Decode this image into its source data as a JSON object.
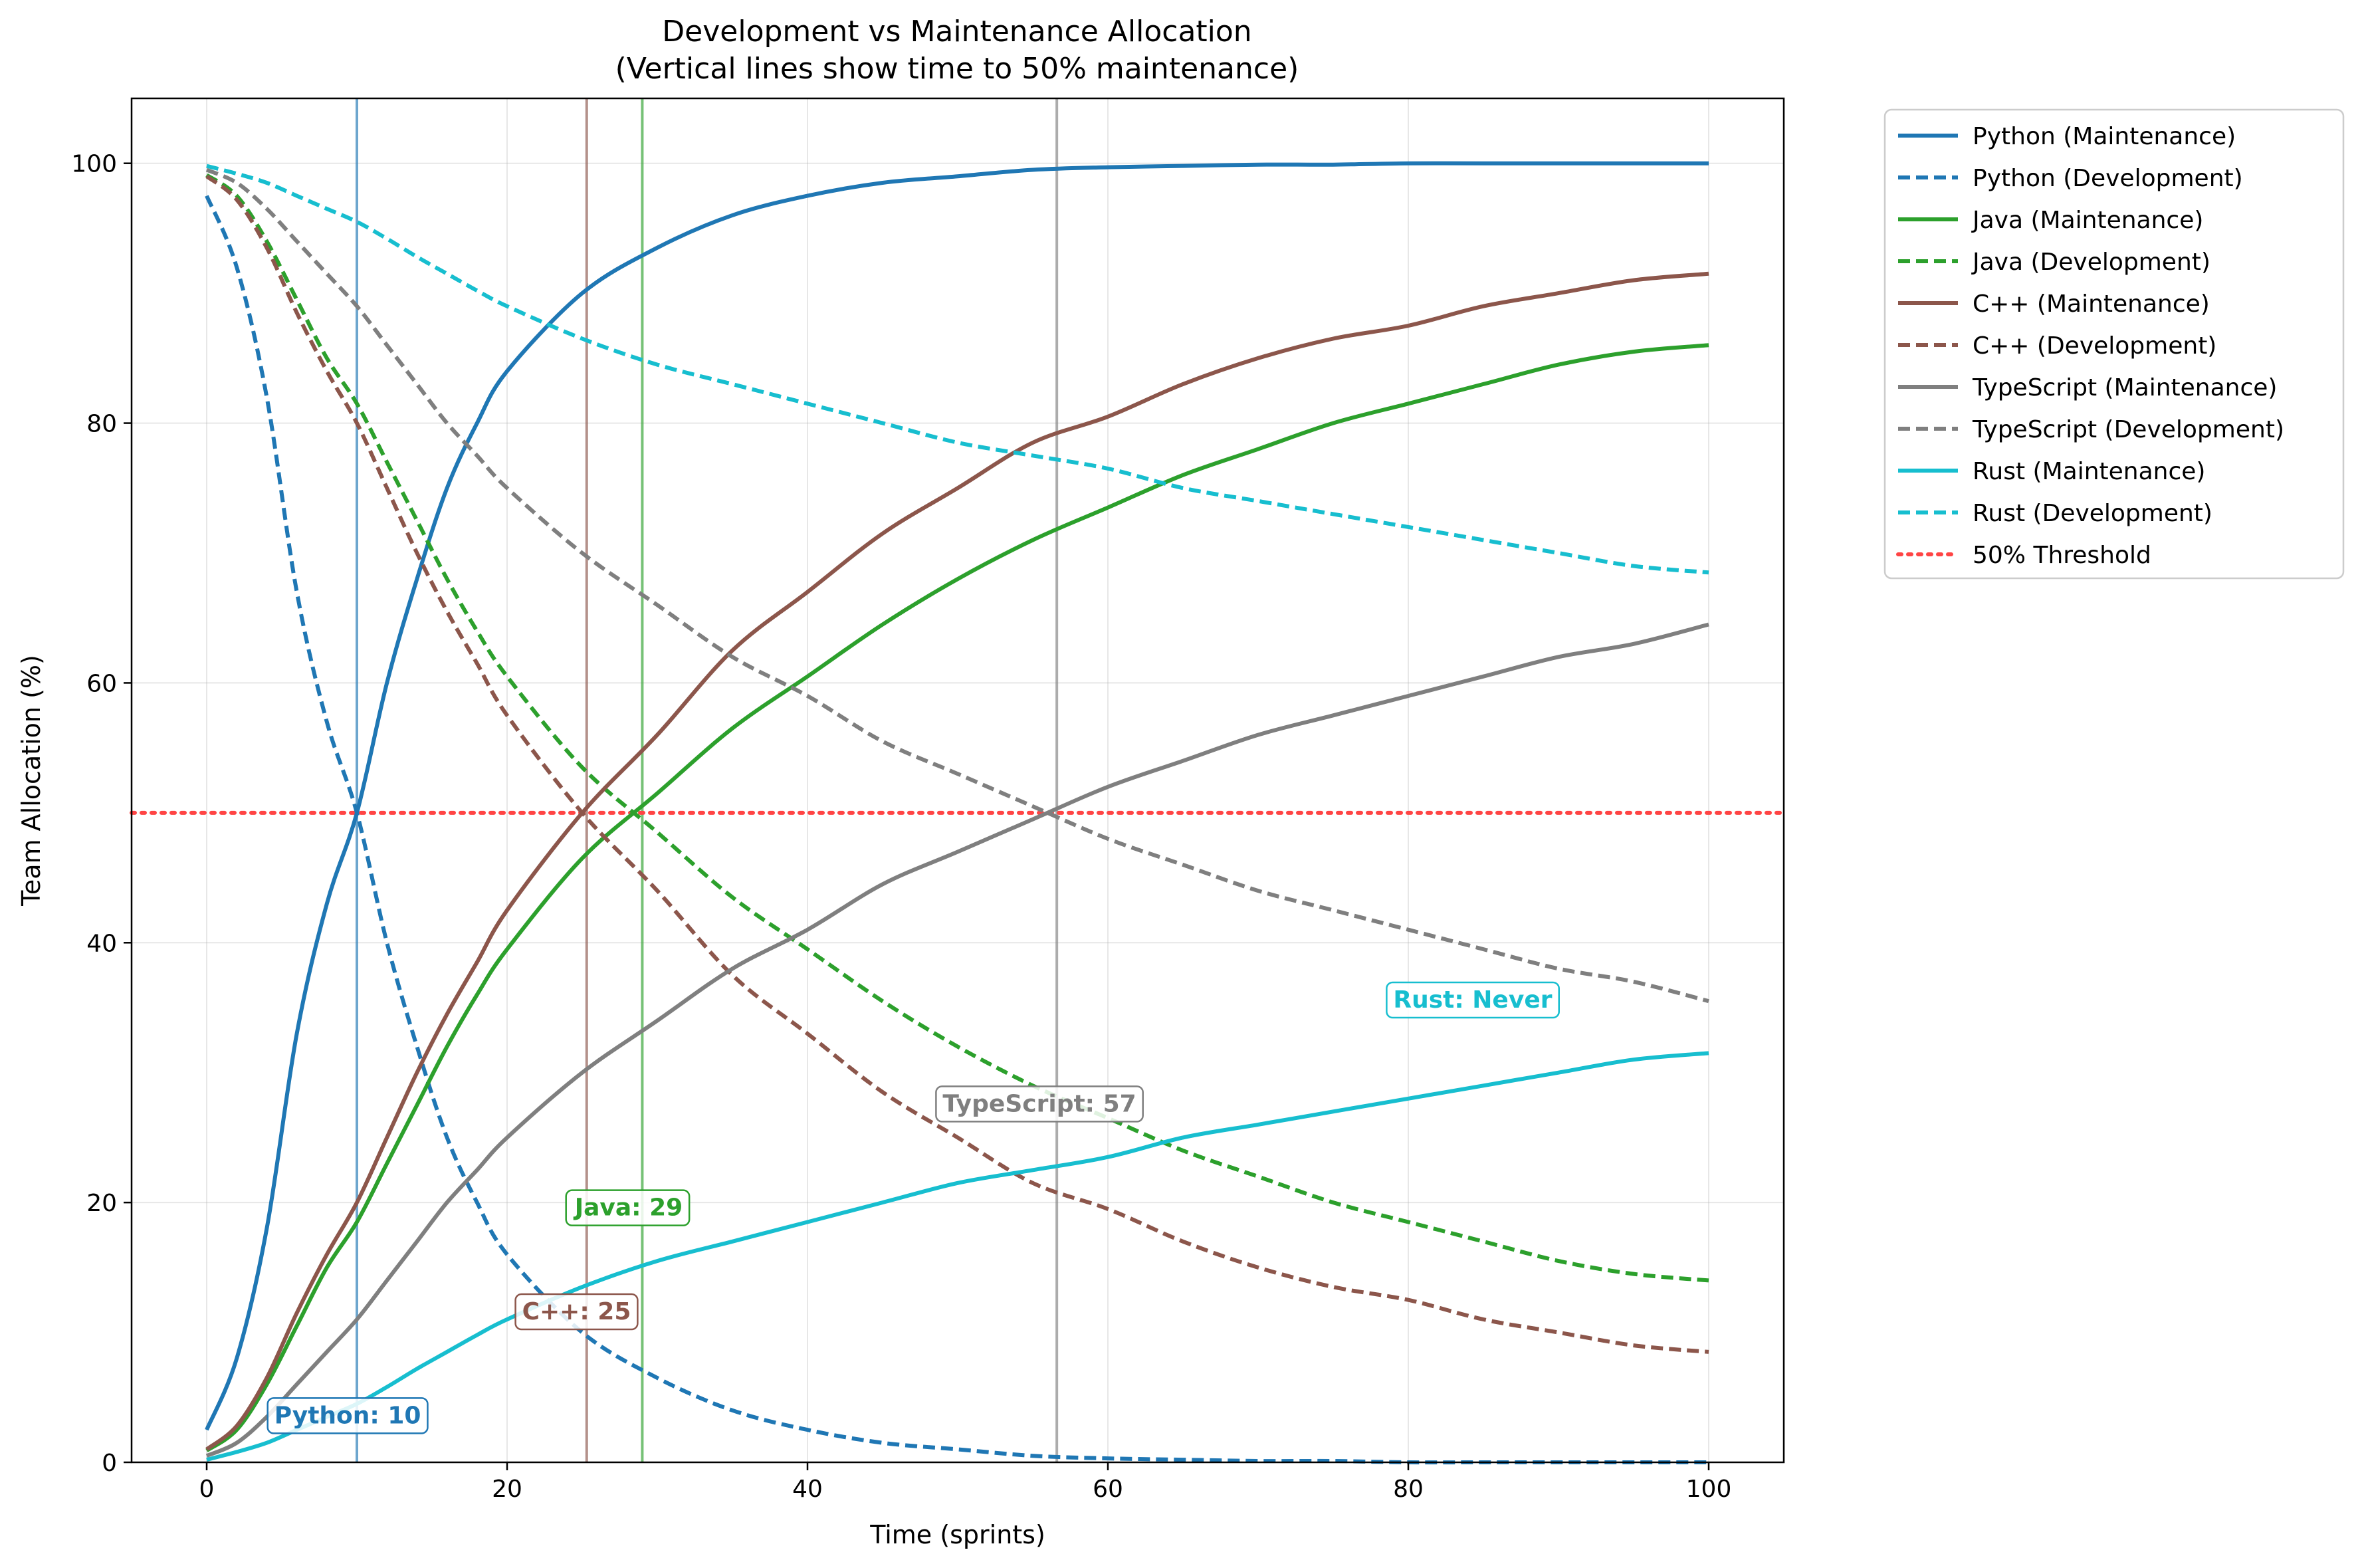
{
  "chart_data": {
    "type": "line",
    "title": "Development vs Maintenance Allocation",
    "subtitle": "(Vertical lines show time to 50% maintenance)",
    "xlabel": "Time (sprints)",
    "ylabel": "Team Allocation (%)",
    "xlim": [
      -5,
      105
    ],
    "ylim": [
      0,
      105
    ],
    "xticks": [
      0,
      20,
      40,
      60,
      80,
      100
    ],
    "yticks": [
      0,
      20,
      40,
      60,
      80,
      100
    ],
    "grid": true,
    "legend_position": "outside-right",
    "x": [
      0,
      2,
      4,
      6,
      8,
      10,
      12,
      14,
      16,
      18,
      20,
      25,
      30,
      35,
      40,
      45,
      50,
      55,
      60,
      65,
      70,
      75,
      80,
      85,
      90,
      95,
      100
    ],
    "series": [
      {
        "name": "Python (Maintenance)",
        "color": "#1f77b4",
        "style": "solid",
        "values": [
          2.5,
          8.0,
          18.0,
          33.0,
          43.0,
          50.0,
          60.0,
          68.0,
          75.0,
          80.0,
          84.0,
          90.0,
          93.5,
          96.0,
          97.5,
          98.5,
          99.0,
          99.5,
          99.7,
          99.8,
          99.9,
          99.9,
          100.0,
          100.0,
          100.0,
          100.0,
          100.0
        ]
      },
      {
        "name": "Python (Development)",
        "color": "#1f77b4",
        "style": "dashed",
        "values": [
          97.5,
          92.0,
          82.0,
          67.0,
          57.0,
          50.0,
          40.0,
          32.0,
          25.0,
          20.0,
          16.0,
          10.0,
          6.5,
          4.0,
          2.5,
          1.5,
          1.0,
          0.5,
          0.3,
          0.2,
          0.1,
          0.1,
          0.0,
          0.0,
          0.0,
          0.0,
          0.0
        ]
      },
      {
        "name": "Java (Maintenance)",
        "color": "#2ca02c",
        "style": "solid",
        "values": [
          0.9,
          2.5,
          6.0,
          10.5,
          15.0,
          18.5,
          23.0,
          27.5,
          32.0,
          36.0,
          39.5,
          46.5,
          51.5,
          56.5,
          60.5,
          64.5,
          68.0,
          71.0,
          73.5,
          76.0,
          78.0,
          80.0,
          81.5,
          83.0,
          84.5,
          85.5,
          86.0
        ]
      },
      {
        "name": "Java (Development)",
        "color": "#2ca02c",
        "style": "dashed",
        "values": [
          99.1,
          97.5,
          94.0,
          89.5,
          85.0,
          81.5,
          77.0,
          72.5,
          68.0,
          64.0,
          60.5,
          53.5,
          48.5,
          43.5,
          39.5,
          35.5,
          32.0,
          29.0,
          26.5,
          24.0,
          22.0,
          20.0,
          18.5,
          17.0,
          15.5,
          14.5,
          14.0
        ]
      },
      {
        "name": "C++ (Maintenance)",
        "color": "#8c564b",
        "style": "solid",
        "values": [
          1.0,
          2.8,
          6.5,
          11.5,
          16.0,
          20.0,
          25.0,
          30.0,
          34.5,
          38.5,
          42.5,
          50.0,
          56.0,
          62.5,
          67.0,
          71.5,
          75.0,
          78.5,
          80.5,
          83.0,
          85.0,
          86.5,
          87.5,
          89.0,
          90.0,
          91.0,
          91.5
        ]
      },
      {
        "name": "C++ (Development)",
        "color": "#8c564b",
        "style": "dashed",
        "values": [
          99.0,
          97.2,
          93.5,
          88.5,
          84.0,
          80.0,
          75.0,
          70.0,
          65.5,
          61.5,
          57.5,
          50.0,
          44.0,
          37.5,
          33.0,
          28.5,
          25.0,
          21.5,
          19.5,
          17.0,
          15.0,
          13.5,
          12.5,
          11.0,
          10.0,
          9.0,
          8.5
        ]
      },
      {
        "name": "TypeScript (Maintenance)",
        "color": "#7f7f7f",
        "style": "solid",
        "values": [
          0.5,
          1.5,
          3.5,
          6.0,
          8.5,
          11.0,
          14.0,
          17.0,
          20.0,
          22.5,
          25.0,
          30.0,
          34.0,
          38.0,
          41.0,
          44.5,
          47.0,
          49.5,
          52.0,
          54.0,
          56.0,
          57.5,
          59.0,
          60.5,
          62.0,
          63.0,
          64.5
        ]
      },
      {
        "name": "TypeScript (Development)",
        "color": "#7f7f7f",
        "style": "dashed",
        "values": [
          99.5,
          98.5,
          96.5,
          94.0,
          91.5,
          89.0,
          86.0,
          83.0,
          80.0,
          77.5,
          75.0,
          70.0,
          66.0,
          62.0,
          59.0,
          55.5,
          53.0,
          50.5,
          48.0,
          46.0,
          44.0,
          42.5,
          41.0,
          39.5,
          38.0,
          37.0,
          35.5
        ]
      },
      {
        "name": "Rust (Maintenance)",
        "color": "#17becf",
        "style": "solid",
        "values": [
          0.2,
          0.8,
          1.5,
          2.5,
          3.5,
          4.5,
          5.8,
          7.2,
          8.5,
          9.8,
          11.0,
          13.5,
          15.5,
          17.0,
          18.5,
          20.0,
          21.5,
          22.5,
          23.5,
          25.0,
          26.0,
          27.0,
          28.0,
          29.0,
          30.0,
          31.0,
          31.5
        ]
      },
      {
        "name": "Rust (Development)",
        "color": "#17becf",
        "style": "dashed",
        "values": [
          99.8,
          99.2,
          98.5,
          97.5,
          96.5,
          95.5,
          94.2,
          92.8,
          91.5,
          90.2,
          89.0,
          86.5,
          84.5,
          83.0,
          81.5,
          80.0,
          78.5,
          77.5,
          76.5,
          75.0,
          74.0,
          73.0,
          72.0,
          71.0,
          70.0,
          69.0,
          68.5
        ]
      }
    ],
    "threshold": {
      "name": "50% Threshold",
      "value": 50,
      "color": "#ff4444",
      "style": "dotted"
    },
    "vertical_lines": [
      {
        "x": 10,
        "color": "#1f77b4"
      },
      {
        "x": 25.3,
        "color": "#8c564b"
      },
      {
        "x": 29,
        "color": "#2ca02c"
      },
      {
        "x": 56.6,
        "color": "#7f7f7f"
      }
    ],
    "annotations": [
      {
        "text": "Python: 10",
        "x": 4.5,
        "y": 3,
        "color": "#1f77b4"
      },
      {
        "text": "C++: 25",
        "x": 21,
        "y": 11,
        "color": "#8c564b"
      },
      {
        "text": "Java: 29",
        "x": 24.5,
        "y": 19,
        "color": "#2ca02c"
      },
      {
        "text": "TypeScript: 57",
        "x": 49,
        "y": 27,
        "color": "#7f7f7f"
      },
      {
        "text": "Rust: Never",
        "x": 79,
        "y": 35,
        "color": "#17becf"
      }
    ]
  }
}
